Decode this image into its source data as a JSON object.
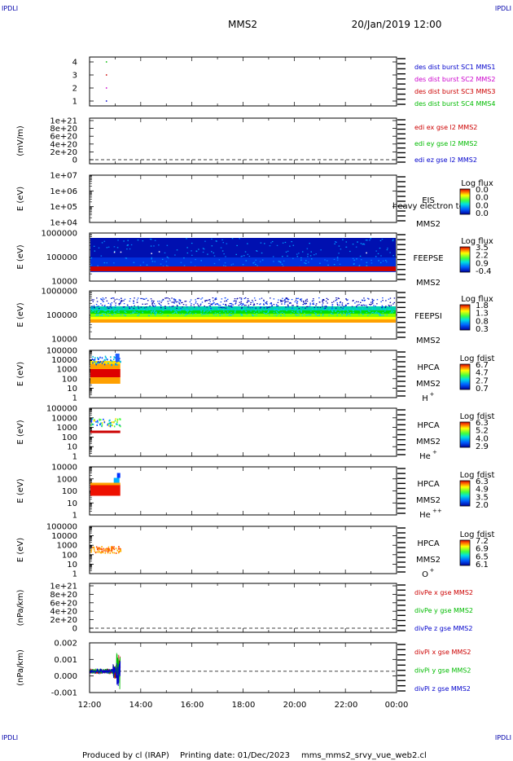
{
  "header": {
    "left_tag": "IPDLI",
    "right_tag": "IPDLI",
    "mission": "MMS2",
    "datetime": "20/Jan/2019 12:00"
  },
  "footer": {
    "left_tag": "IPDLI",
    "right_tag": "IPDLI",
    "produced": "Produced by cl (IRAP)",
    "printing": "Printing date: 01/Dec/2023",
    "file": "mms_mms2_srvy_vue_web2.cl"
  },
  "chart_data": [
    {
      "type": "scatter",
      "ylabel": "",
      "yticks": [
        "4",
        "3",
        "2",
        "1"
      ],
      "legend": [
        {
          "label": "des dist burst SC1 MMS1",
          "color": "#0000cc"
        },
        {
          "label": "des dist burst SC2 MMS2",
          "color": "#cc00cc"
        },
        {
          "label": "des dist burst SC3 MMS3",
          "color": "#cc0000"
        },
        {
          "label": "des dist burst SC4 MMS4",
          "color": "#00bb00"
        }
      ],
      "points": [
        {
          "x": 0.66,
          "y": 4,
          "color": "#00bb00"
        },
        {
          "x": 0.66,
          "y": 3,
          "color": "#cc0000"
        },
        {
          "x": 0.66,
          "y": 2,
          "color": "#cc00cc"
        },
        {
          "x": 0.66,
          "y": 1,
          "color": "#0000cc"
        }
      ]
    },
    {
      "type": "line",
      "ylabel": "(mV/m)",
      "yticks": [
        "1e+21",
        "8e+20",
        "6e+20",
        "4e+20",
        "2e+20",
        "0"
      ],
      "legend": [
        {
          "label": "edi ex gse l2 MMS2",
          "color": "#cc0000"
        },
        {
          "label": "edi ey gse l2 MMS2",
          "color": "#00bb00"
        },
        {
          "label": "edi ez gse l2 MMS2",
          "color": "#0000cc"
        }
      ]
    },
    {
      "type": "heatmap",
      "ylabel": "E (eV)",
      "yticks": [
        "1e+07",
        "1e+06",
        "1e+05",
        "1e+04"
      ],
      "instrument": "EIS",
      "note": "heavy electron tof",
      "mission": "MMS2",
      "colorbar": {
        "title": "Log flux",
        "ticks": [
          "0.0",
          "0.0",
          "0.0",
          "0.0"
        ]
      }
    },
    {
      "type": "heatmap",
      "ylabel": "E (eV)",
      "yticks": [
        "1000000",
        "100000",
        "10000"
      ],
      "instrument": "FEEPSE",
      "mission": "MMS2",
      "colorbar": {
        "title": "Log flux",
        "ticks": [
          "3.5",
          "2.2",
          "0.9",
          "-0.4"
        ]
      }
    },
    {
      "type": "heatmap",
      "ylabel": "E (eV)",
      "yticks": [
        "1000000",
        "100000",
        "10000"
      ],
      "instrument": "FEEPSI",
      "mission": "MMS2",
      "colorbar": {
        "title": "Log flux",
        "ticks": [
          "1.8",
          "1.3",
          "0.8",
          "0.3"
        ]
      }
    },
    {
      "type": "heatmap",
      "ylabel": "E (eV)",
      "yticks": [
        "100000",
        "10000",
        "1000",
        "100",
        "10",
        "1"
      ],
      "instrument": "HPCA",
      "mission": "MMS2",
      "species": "H",
      "species_sup": "+",
      "colorbar": {
        "title": "Log fdist",
        "ticks": [
          "6.7",
          "4.7",
          "2.7",
          "0.7"
        ]
      }
    },
    {
      "type": "heatmap",
      "ylabel": "E (eV)",
      "yticks": [
        "100000",
        "10000",
        "1000",
        "100",
        "10",
        "1"
      ],
      "instrument": "HPCA",
      "mission": "MMS2",
      "species": "He",
      "species_sup": "+",
      "colorbar": {
        "title": "Log fdist",
        "ticks": [
          "6.3",
          "5.2",
          "4.0",
          "2.9"
        ]
      }
    },
    {
      "type": "heatmap",
      "ylabel": "E (eV)",
      "yticks": [
        "10000",
        "1000",
        "100",
        "10",
        "1"
      ],
      "instrument": "HPCA",
      "mission": "MMS2",
      "species": "He",
      "species_sup": "++",
      "colorbar": {
        "title": "Log fdist",
        "ticks": [
          "6.3",
          "4.9",
          "3.5",
          "2.0"
        ]
      }
    },
    {
      "type": "heatmap",
      "ylabel": "E (eV)",
      "yticks": [
        "100000",
        "10000",
        "1000",
        "100",
        "10",
        "1"
      ],
      "instrument": "HPCA",
      "mission": "MMS2",
      "species": "O",
      "species_sup": "+",
      "colorbar": {
        "title": "Log fdist",
        "ticks": [
          "7.2",
          "6.9",
          "6.5",
          "6.1"
        ]
      }
    },
    {
      "type": "line",
      "ylabel": "(nPa/km)",
      "yticks": [
        "1e+21",
        "8e+20",
        "6e+20",
        "4e+20",
        "2e+20",
        "0"
      ],
      "legend": [
        {
          "label": "divPe x gse MMS2",
          "color": "#cc0000"
        },
        {
          "label": "divPe y gse MMS2",
          "color": "#00bb00"
        },
        {
          "label": "divPe z gse MMS2",
          "color": "#0000cc"
        }
      ]
    },
    {
      "type": "line",
      "ylabel": "(nPa/km)",
      "yticks": [
        "0.002",
        "0.001",
        "0.000",
        "-0.001"
      ],
      "ylim": [
        -0.0015,
        0.002
      ],
      "legend": [
        {
          "label": "divPi x gse MMS2",
          "color": "#cc0000"
        },
        {
          "label": "divPi y gse MMS2",
          "color": "#00bb00"
        },
        {
          "label": "divPi z gse MMS2",
          "color": "#0000cc"
        }
      ]
    }
  ],
  "xaxis": {
    "ticks": [
      "12:00",
      "14:00",
      "16:00",
      "18:00",
      "20:00",
      "22:00",
      "00:00"
    ]
  }
}
